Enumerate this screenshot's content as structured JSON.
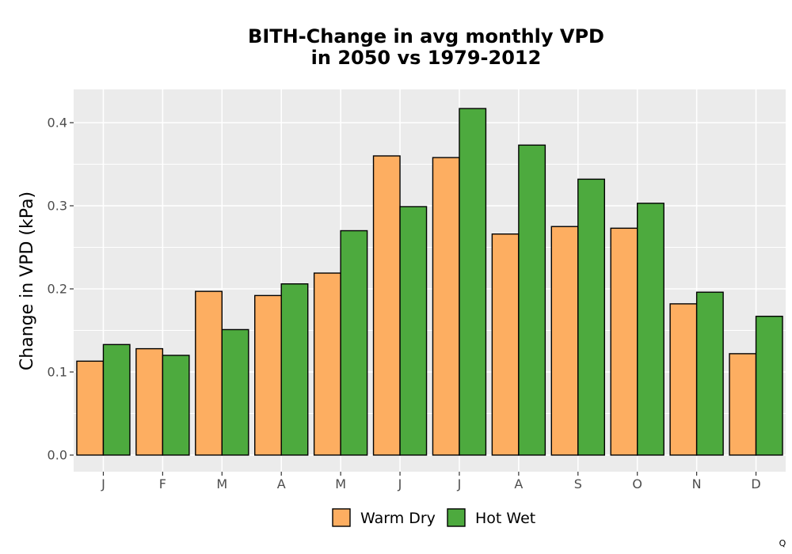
{
  "chart_data": {
    "type": "bar",
    "title_lines": [
      "BITH-Change in avg monthly VPD",
      "in 2050 vs 1979-2012"
    ],
    "xlabel": "",
    "ylabel": "Change in VPD (kPa)",
    "categories": [
      "J",
      "F",
      "M",
      "A",
      "M",
      "J",
      "J",
      "A",
      "S",
      "O",
      "N",
      "D"
    ],
    "series": [
      {
        "name": "Warm Dry",
        "color": "#fdae61",
        "values": [
          0.113,
          0.128,
          0.197,
          0.192,
          0.219,
          0.36,
          0.358,
          0.266,
          0.275,
          0.273,
          0.182,
          0.122
        ]
      },
      {
        "name": "Hot Wet",
        "color": "#4daa3e",
        "values": [
          0.133,
          0.12,
          0.151,
          0.206,
          0.27,
          0.299,
          0.417,
          0.373,
          0.332,
          0.303,
          0.196,
          0.167
        ]
      }
    ],
    "ylim": [
      -0.02,
      0.44
    ],
    "yticks": [
      0.0,
      0.1,
      0.2,
      0.3,
      0.4
    ],
    "ytick_labels": [
      "0.0",
      "0.1",
      "0.2",
      "0.3",
      "0.4"
    ],
    "grid": true,
    "legend_position": "bottom",
    "panel_background": "#ebebeb",
    "grid_color": "#ffffff"
  },
  "corner_mark": "Q"
}
